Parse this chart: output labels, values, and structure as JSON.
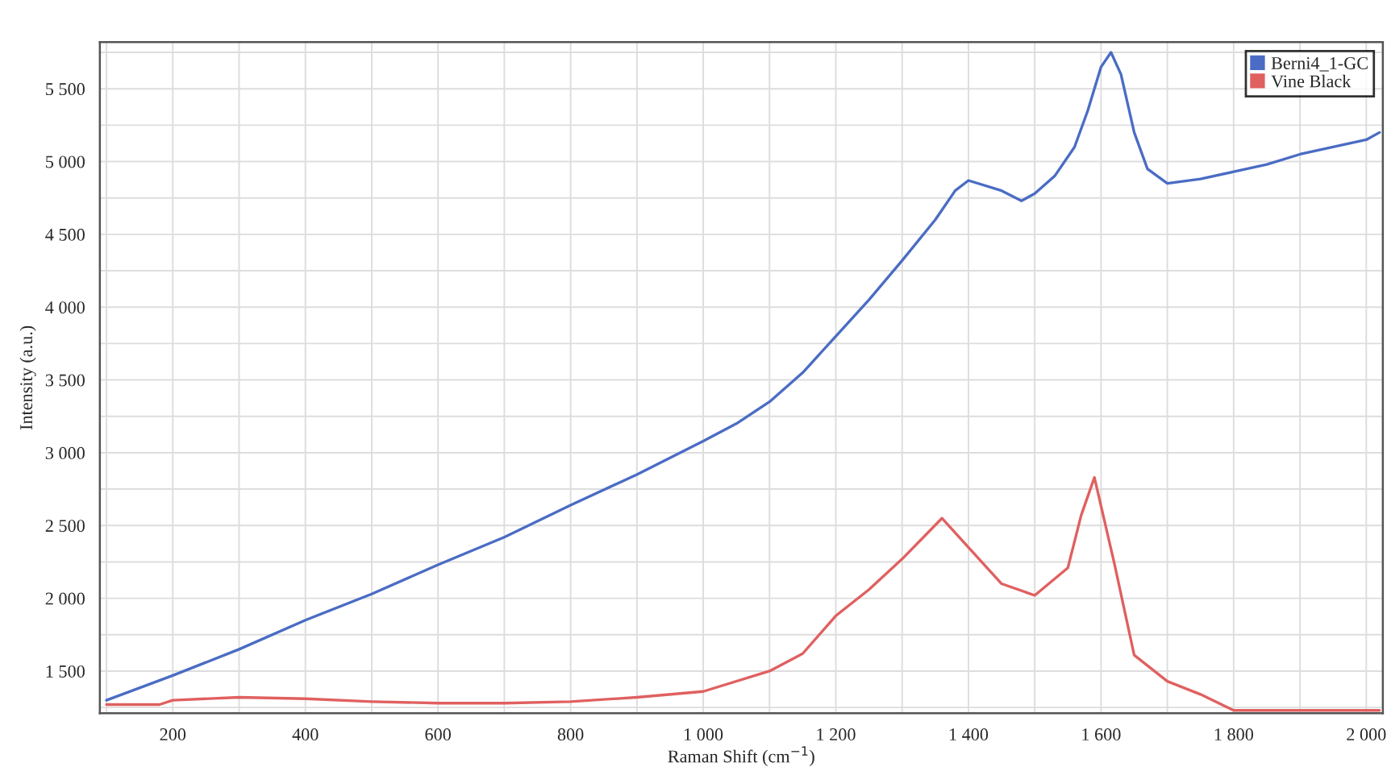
{
  "chart_data": {
    "type": "line",
    "xlabel": "Raman Shift (cm$^{−1}$)",
    "ylabel": "Intensity (a.u.)",
    "xlim": [
      90,
      2025
    ],
    "ylim": [
      1210,
      5820
    ],
    "xticks": [
      {
        "value": 100,
        "label": null
      },
      {
        "value": 200,
        "label": "200"
      },
      {
        "value": 300,
        "label": null
      },
      {
        "value": 400,
        "label": "400"
      },
      {
        "value": 500,
        "label": null
      },
      {
        "value": 600,
        "label": "600"
      },
      {
        "value": 700,
        "label": null
      },
      {
        "value": 800,
        "label": "800"
      },
      {
        "value": 900,
        "label": null
      },
      {
        "value": 1000,
        "label": "1 000"
      },
      {
        "value": 1100,
        "label": null
      },
      {
        "value": 1200,
        "label": "1 200"
      },
      {
        "value": 1300,
        "label": null
      },
      {
        "value": 1400,
        "label": "1 400"
      },
      {
        "value": 1500,
        "label": null
      },
      {
        "value": 1600,
        "label": "1 600"
      },
      {
        "value": 1700,
        "label": null
      },
      {
        "value": 1800,
        "label": "1 800"
      },
      {
        "value": 1900,
        "label": null
      },
      {
        "value": 2000,
        "label": "2 000"
      }
    ],
    "yticks": [
      {
        "value": 1250,
        "label": null
      },
      {
        "value": 1500,
        "label": "1 500"
      },
      {
        "value": 1750,
        "label": null
      },
      {
        "value": 2000,
        "label": "2 000"
      },
      {
        "value": 2250,
        "label": null
      },
      {
        "value": 2500,
        "label": "2 500"
      },
      {
        "value": 2750,
        "label": null
      },
      {
        "value": 3000,
        "label": "3 000"
      },
      {
        "value": 3250,
        "label": null
      },
      {
        "value": 3500,
        "label": "3 500"
      },
      {
        "value": 3750,
        "label": null
      },
      {
        "value": 4000,
        "label": "4 000"
      },
      {
        "value": 4250,
        "label": null
      },
      {
        "value": 4500,
        "label": "4 500"
      },
      {
        "value": 4750,
        "label": null
      },
      {
        "value": 5000,
        "label": "5 000"
      },
      {
        "value": 5250,
        "label": null
      },
      {
        "value": 5500,
        "label": "5 500"
      },
      {
        "value": 5750,
        "label": null
      }
    ],
    "grid": true,
    "legend": "top right",
    "series": [
      {
        "name": "Berni4_1-GC",
        "color": "#4a6cc4",
        "x": [
          100,
          200,
          300,
          400,
          500,
          600,
          700,
          800,
          900,
          1000,
          1050,
          1100,
          1150,
          1200,
          1250,
          1300,
          1350,
          1380,
          1400,
          1450,
          1480,
          1500,
          1530,
          1560,
          1580,
          1600,
          1615,
          1630,
          1650,
          1670,
          1700,
          1750,
          1800,
          1850,
          1900,
          1950,
          2000,
          2020
        ],
        "values": [
          1300,
          1470,
          1650,
          1850,
          2030,
          2230,
          2420,
          2640,
          2850,
          3080,
          3200,
          3350,
          3550,
          3800,
          4050,
          4320,
          4600,
          4800,
          4870,
          4800,
          4730,
          4780,
          4900,
          5100,
          5350,
          5650,
          5750,
          5600,
          5200,
          4950,
          4850,
          4880,
          4930,
          4980,
          5050,
          5100,
          5150,
          5200
        ]
      },
      {
        "name": "Vine Black",
        "color": "#e06060",
        "x": [
          100,
          180,
          200,
          300,
          400,
          500,
          600,
          700,
          800,
          900,
          1000,
          1100,
          1150,
          1200,
          1250,
          1300,
          1360,
          1400,
          1450,
          1500,
          1550,
          1570,
          1590,
          1620,
          1650,
          1700,
          1750,
          1800,
          1900,
          2020
        ],
        "values": [
          1270,
          1270,
          1300,
          1320,
          1310,
          1290,
          1280,
          1280,
          1290,
          1320,
          1360,
          1500,
          1620,
          1880,
          2060,
          2270,
          2550,
          2350,
          2100,
          2020,
          2210,
          2570,
          2830,
          2240,
          1610,
          1430,
          1340,
          1230,
          1230,
          1230
        ]
      }
    ]
  }
}
